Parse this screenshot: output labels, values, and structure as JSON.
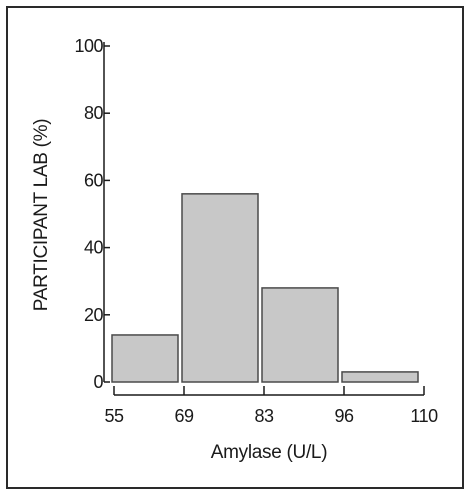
{
  "chart_data": {
    "type": "bar",
    "bins": [
      {
        "start": 55,
        "end": 69,
        "value": 14
      },
      {
        "start": 69,
        "end": 83,
        "value": 56
      },
      {
        "start": 83,
        "end": 96,
        "value": 28
      },
      {
        "start": 96,
        "end": 110,
        "value": 3
      }
    ],
    "x_ticks": [
      "55",
      "69",
      "83",
      "96",
      "110"
    ],
    "y_ticks": [
      "0",
      "20",
      "40",
      "60",
      "80",
      "100"
    ],
    "xlabel": "Amylase (U/L)",
    "ylabel": "PARTICIPANT LAB (%)",
    "ylim": [
      0,
      100
    ],
    "grid": false,
    "colors": {
      "bar_fill": "#c8c8c8",
      "bar_stroke": "#4a4a4a",
      "axis": "#1a1a1a"
    }
  }
}
